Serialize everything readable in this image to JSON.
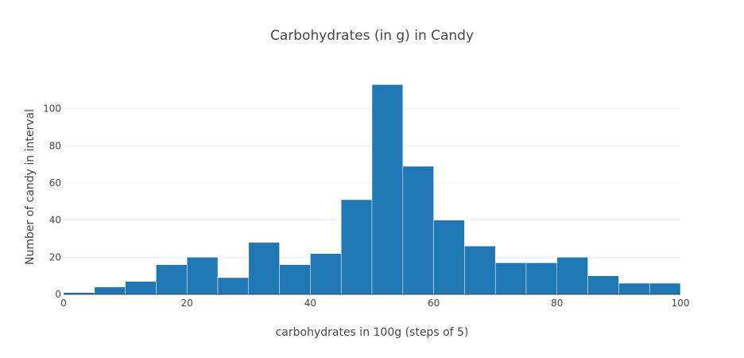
{
  "chart_data": {
    "type": "bar",
    "title": "Carbohydrates (in g) in Candy",
    "xlabel": "carbohydrates in 100g (steps of 5)",
    "ylabel": "Number of candy in interval",
    "bin_width": 5,
    "bin_starts": [
      0,
      5,
      10,
      15,
      20,
      25,
      30,
      35,
      40,
      45,
      50,
      55,
      60,
      65,
      70,
      75,
      80,
      85,
      90,
      95
    ],
    "values": [
      1,
      4,
      7,
      16,
      20,
      9,
      28,
      16,
      22,
      51,
      113,
      69,
      40,
      26,
      17,
      17,
      20,
      10,
      6,
      6
    ],
    "xlim": [
      0,
      100
    ],
    "ylim": [
      0,
      120
    ],
    "x_ticks": [
      0,
      20,
      40,
      60,
      80,
      100
    ],
    "y_ticks": [
      0,
      20,
      40,
      60,
      80,
      100
    ],
    "x_tick_labels": [
      "0",
      "20",
      "40",
      "60",
      "80",
      "100"
    ],
    "y_tick_labels": [
      "0",
      "20",
      "40",
      "60",
      "80",
      "100"
    ],
    "grid": true,
    "bar_color": "#1f77b4",
    "bar_edge_color": "#ffffff",
    "legend": false
  }
}
